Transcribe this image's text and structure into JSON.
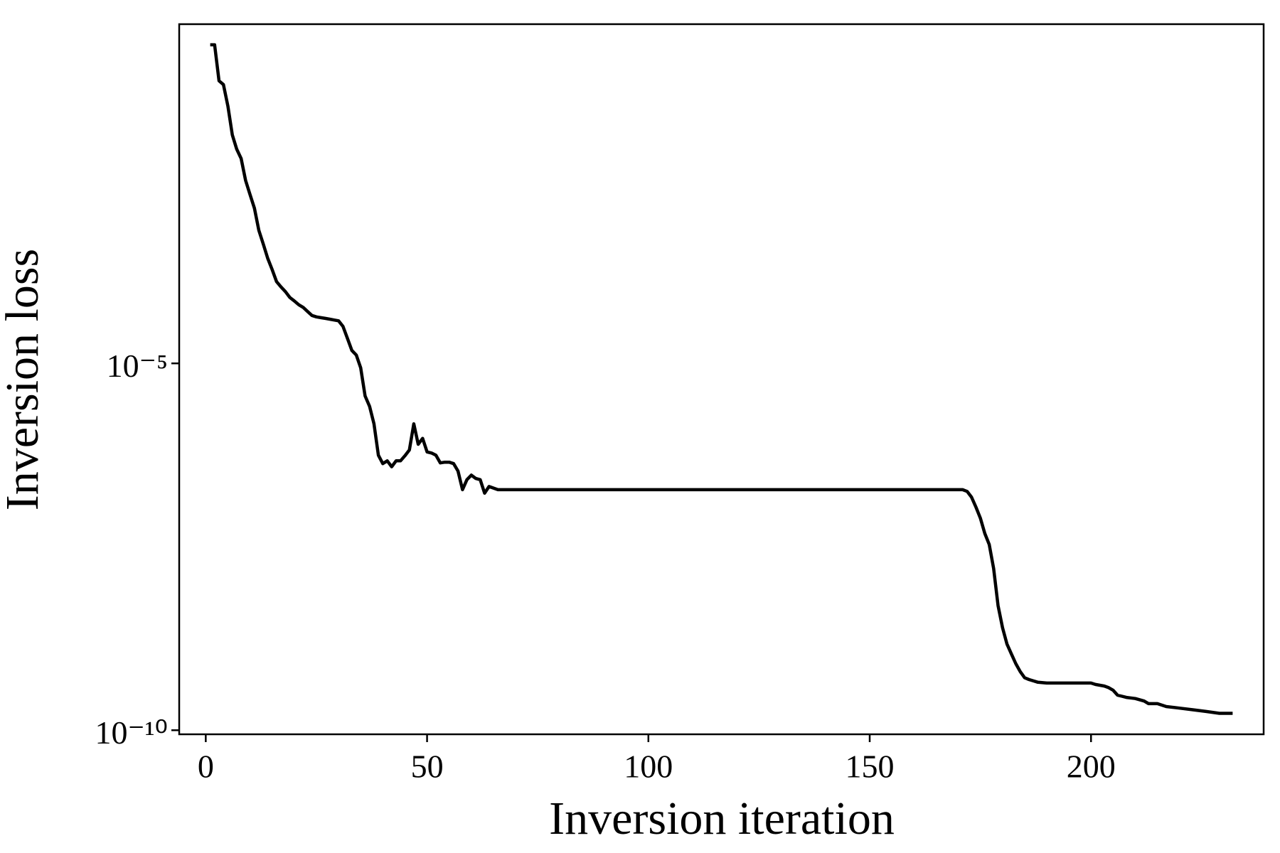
{
  "chart_data": {
    "type": "line",
    "x_label": "Inversion iteration",
    "y_label": "Inversion loss",
    "yscale": "log",
    "color": "#000000",
    "x": [
      1,
      2,
      3,
      4,
      5,
      6,
      7,
      8,
      9,
      10,
      11,
      12,
      13,
      14,
      15,
      16,
      17,
      18,
      19,
      20,
      21,
      22,
      23,
      24,
      25,
      26,
      27,
      28,
      29,
      30,
      31,
      32,
      33,
      34,
      35,
      36,
      37,
      38,
      39,
      40,
      41,
      42,
      43,
      44,
      45,
      46,
      47,
      48,
      49,
      50,
      51,
      52,
      53,
      54,
      55,
      56,
      57,
      58,
      59,
      60,
      61,
      62,
      63,
      64,
      65,
      66,
      67,
      100,
      140,
      169,
      170,
      171,
      172,
      173,
      174,
      175,
      176,
      177,
      178,
      179,
      180,
      181,
      182,
      183,
      184,
      185,
      186,
      187,
      188,
      190,
      200,
      201,
      202,
      203,
      204,
      205,
      206,
      207,
      208,
      210,
      211,
      212,
      213,
      215,
      217,
      220,
      223,
      226,
      229,
      232
    ],
    "values": [
      0.22,
      0.22,
      0.071,
      0.063,
      0.032,
      0.013,
      0.0083,
      0.0062,
      0.0031,
      0.002,
      0.0013,
      0.00065,
      0.00042,
      0.00027,
      0.00019,
      0.00013,
      0.00011,
      9.5e-05,
      7.9e-05,
      7.1e-05,
      6.3e-05,
      5.8e-05,
      5.1e-05,
      4.5e-05,
      4.3e-05,
      4.2e-05,
      4.1e-05,
      4e-05,
      3.9e-05,
      3.8e-05,
      3.2e-05,
      2.2e-05,
      1.5e-05,
      1.3e-05,
      8.7e-06,
      3.6e-06,
      2.6e-06,
      1.5e-06,
      5.6e-07,
      4.3e-07,
      4.7e-07,
      3.9e-07,
      4.7e-07,
      4.7e-07,
      5.5e-07,
      6.6e-07,
      1.5e-06,
      7.9e-07,
      9.5e-07,
      6.2e-07,
      6e-07,
      5.6e-07,
      4.4e-07,
      4.5e-07,
      4.5e-07,
      4.3e-07,
      3.4e-07,
      1.9e-07,
      2.6e-07,
      3e-07,
      2.7e-07,
      2.6e-07,
      1.7e-07,
      2.1e-07,
      2e-07,
      1.9e-07,
      1.9e-07,
      1.9e-07,
      1.9e-07,
      1.9e-07,
      1.9e-07,
      1.9e-07,
      1.8e-07,
      1.5e-07,
      1.1e-07,
      7.8e-08,
      4.8e-08,
      3.4e-08,
      1.6e-08,
      5e-09,
      2.5e-09,
      1.5e-09,
      1.1e-09,
      8.1e-10,
      6.3e-10,
      5.2e-10,
      4.9e-10,
      4.7e-10,
      4.5e-10,
      4.4e-10,
      4.4e-10,
      4.2e-10,
      4.1e-10,
      4e-10,
      3.8e-10,
      3.5e-10,
      3e-10,
      2.9e-10,
      2.8e-10,
      2.7e-10,
      2.6e-10,
      2.5e-10,
      2.3e-10,
      2.3e-10,
      2.1e-10,
      2e-10,
      1.9e-10,
      1.8e-10,
      1.7e-10,
      1.7e-10
    ],
    "xlim": [
      -6,
      239
    ],
    "ylim": [
      8.8e-11,
      0.42
    ],
    "xticks": [
      0,
      50,
      100,
      150,
      200
    ],
    "yticks": [
      {
        "value": 1e-05,
        "label": "10⁻⁵"
      },
      {
        "value": 1e-10,
        "label": "10⁻¹⁰"
      }
    ]
  }
}
